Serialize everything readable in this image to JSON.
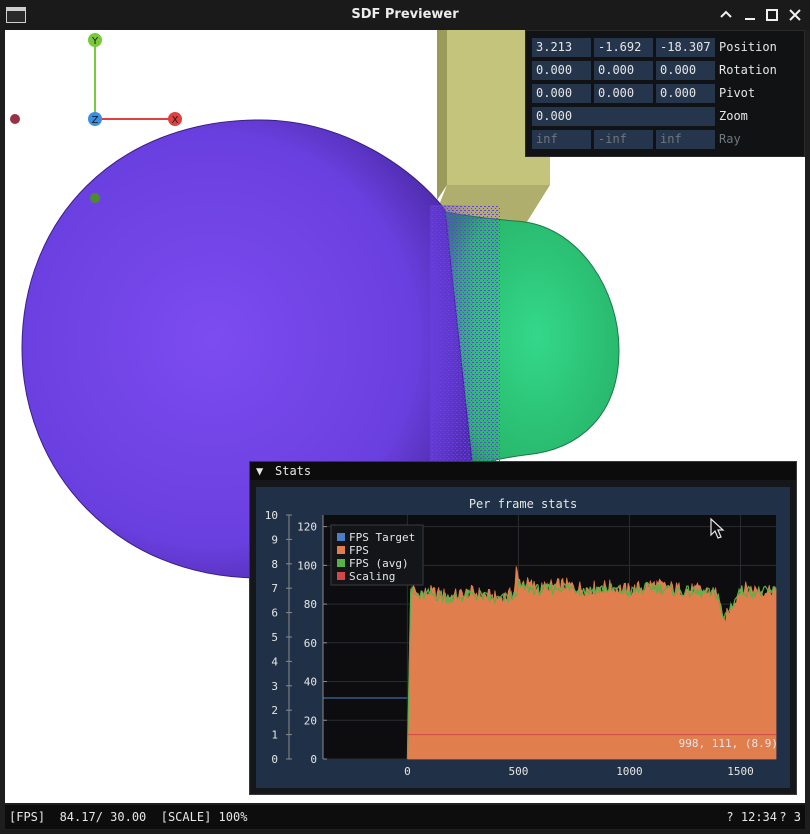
{
  "window": {
    "title": "SDF Previewer"
  },
  "transform": {
    "rows": [
      {
        "label": "Position",
        "values": [
          "3.213",
          "-1.692",
          "-18.307"
        ]
      },
      {
        "label": "Rotation",
        "values": [
          "0.000",
          "0.000",
          "0.000"
        ]
      },
      {
        "label": "Pivot",
        "values": [
          "0.000",
          "0.000",
          "0.000"
        ]
      },
      {
        "label": "Zoom",
        "values": [
          "0.000"
        ]
      },
      {
        "label": "Ray",
        "values": [
          "inf",
          "-inf",
          "inf"
        ]
      }
    ]
  },
  "gizmo": {
    "x_label": "X",
    "y_label": "Y",
    "z_label": "Z"
  },
  "stats": {
    "panel_title": "Stats",
    "plot_title": "Per frame stats",
    "hover_readout": "998, 111, (8.9)"
  },
  "colors": {
    "fps_target": "#4a7ec8",
    "fps": "#e07e4e",
    "fps_avg": "#57b24a",
    "scaling": "#d04848"
  },
  "chart_data": {
    "type": "area",
    "title": "Per frame stats",
    "legend_position": "top-left",
    "x_ticks": [
      0,
      500,
      1000,
      1500
    ],
    "xlim": [
      -380,
      1660
    ],
    "y_left_ticks": [
      0,
      20,
      40,
      60,
      80,
      100,
      120
    ],
    "y_left_lim": [
      0,
      126
    ],
    "y_right_ticks": [
      0,
      1,
      2,
      3,
      4,
      5,
      6,
      7,
      8,
      9,
      10
    ],
    "y_right_lim": [
      0,
      10
    ],
    "grid": true,
    "series": [
      {
        "name": "FPS Target",
        "axis": "right",
        "x": [
          -380,
          0
        ],
        "values": [
          2.5,
          2.5
        ]
      },
      {
        "name": "FPS",
        "axis": "left",
        "x": [
          0,
          15,
          50,
          100,
          200,
          300,
          400,
          480,
          490,
          500,
          600,
          700,
          800,
          900,
          1000,
          1100,
          1200,
          1300,
          1400,
          1420,
          1500,
          1600,
          1660
        ],
        "values": [
          0,
          88,
          85,
          86,
          84,
          86,
          83,
          85,
          98,
          92,
          88,
          90,
          88,
          89,
          87,
          90,
          88,
          87,
          86,
          70,
          88,
          87,
          88
        ]
      },
      {
        "name": "FPS (avg)",
        "axis": "left",
        "x": [
          0,
          15,
          50,
          100,
          200,
          300,
          400,
          480,
          500,
          600,
          700,
          800,
          900,
          1000,
          1100,
          1200,
          1300,
          1400,
          1420,
          1500,
          1600,
          1660
        ],
        "values": [
          0,
          86,
          84,
          85,
          83,
          85,
          82,
          84,
          89,
          87,
          89,
          87,
          88,
          86,
          89,
          87,
          86,
          85,
          72,
          87,
          86,
          87
        ]
      },
      {
        "name": "Scaling",
        "axis": "right",
        "x": [
          0,
          1660
        ],
        "values": [
          1,
          1
        ]
      }
    ]
  },
  "statusbar": {
    "left": "[FPS]  84.17/ 30.00  [SCALE] 100%",
    "right": "? 12:34",
    "count": "? 3"
  }
}
